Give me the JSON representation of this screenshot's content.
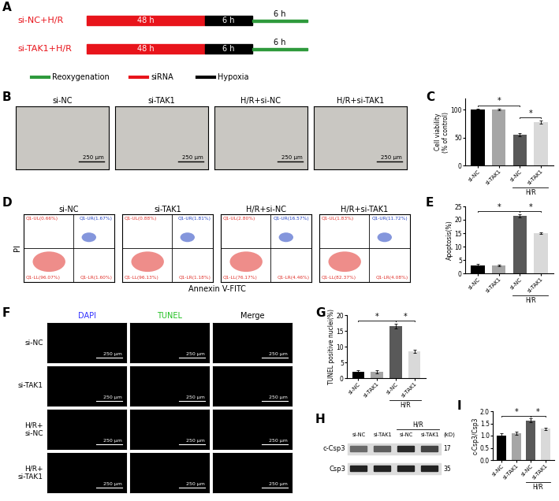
{
  "chart_data": [
    {
      "panel_label": "C",
      "type": "bar",
      "y_label": "Cell viability\n(% of control)",
      "categories": [
        "si-NC",
        "si-TAK1",
        "si-NC",
        "si-TAK1"
      ],
      "groups": [
        {
          "label": "H/R",
          "categories": [
            2,
            3
          ]
        }
      ],
      "values": [
        100,
        100,
        55,
        78
      ],
      "errors": [
        2,
        1.5,
        3,
        2.5
      ],
      "colors": [
        "#000000",
        "#a6a6a6",
        "#595959",
        "#d9d9d9"
      ],
      "ylim": [
        0,
        120
      ],
      "yticks": [
        0,
        50,
        100
      ],
      "significance": [
        {
          "from": 0,
          "to": 2,
          "label": "*"
        },
        {
          "from": 2,
          "to": 3,
          "label": "*"
        }
      ]
    },
    {
      "panel_label": "E",
      "type": "bar",
      "y_label": "Apoptosis(%)",
      "categories": [
        "si-NC",
        "si-TAK1",
        "si-NC",
        "si-TAK1"
      ],
      "groups": [
        {
          "label": "H/R",
          "categories": [
            2,
            3
          ]
        }
      ],
      "values": [
        3,
        3,
        21.5,
        15
      ],
      "errors": [
        0.4,
        0.3,
        0.6,
        0.3
      ],
      "colors": [
        "#000000",
        "#a6a6a6",
        "#595959",
        "#d9d9d9"
      ],
      "ylim": [
        0,
        25
      ],
      "yticks": [
        0,
        5,
        10,
        15,
        20,
        25
      ],
      "significance": [
        {
          "from": 0,
          "to": 2,
          "label": "*"
        },
        {
          "from": 2,
          "to": 3,
          "label": "*"
        }
      ]
    },
    {
      "panel_label": "G",
      "type": "bar",
      "y_label": "TUNEL positive nuclei(%)",
      "categories": [
        "si-NC",
        "si-TAK1",
        "si-NC",
        "si-TAK1"
      ],
      "groups": [
        {
          "label": "H/R",
          "categories": [
            2,
            3
          ]
        }
      ],
      "values": [
        2,
        2,
        16.5,
        8.5
      ],
      "errors": [
        0.6,
        0.5,
        0.8,
        0.6
      ],
      "colors": [
        "#000000",
        "#a6a6a6",
        "#595959",
        "#d9d9d9"
      ],
      "ylim": [
        0,
        20
      ],
      "yticks": [
        0,
        5,
        10,
        15,
        20
      ],
      "significance": [
        {
          "from": 0,
          "to": 2,
          "label": "*"
        },
        {
          "from": 2,
          "to": 3,
          "label": "*"
        }
      ]
    },
    {
      "panel_label": "I",
      "type": "bar",
      "y_label": "c-Csp3/Csp3",
      "categories": [
        "si-NC",
        "si-TAK1",
        "si-NC",
        "si-TAK1"
      ],
      "groups": [
        {
          "label": "H/R",
          "categories": [
            2,
            3
          ]
        }
      ],
      "values": [
        1.0,
        1.1,
        1.62,
        1.28
      ],
      "errors": [
        0.1,
        0.06,
        0.08,
        0.05
      ],
      "colors": [
        "#000000",
        "#a6a6a6",
        "#595959",
        "#d9d9d9"
      ],
      "ylim": [
        0,
        2.0
      ],
      "yticks": [
        {
          "value": 0,
          "label": "0.0"
        },
        {
          "value": 0.5,
          "label": "0.5"
        },
        {
          "value": 1.0,
          "label": "1.0"
        },
        {
          "value": 1.5,
          "label": "1.5"
        },
        {
          "value": 2.0,
          "label": "2.0"
        }
      ],
      "significance": [
        {
          "from": 0,
          "to": 2,
          "label": "*"
        },
        {
          "from": 2,
          "to": 3,
          "label": "*"
        }
      ]
    }
  ],
  "panel_A": {
    "panel_label": "A",
    "rows": [
      {
        "label": "si-NC+H/R",
        "color": "#e8141b",
        "segments": [
          {
            "label": "48 h",
            "phase": "siRNA"
          },
          {
            "label": "6 h",
            "phase": "Hypoxia"
          },
          {
            "label": "6 h",
            "phase": "Reoxygenation"
          }
        ]
      },
      {
        "label": "si-TAK1+H/R",
        "color": "#e8141b",
        "segments": [
          {
            "label": "48 h",
            "phase": "siRNA"
          },
          {
            "label": "6 h",
            "phase": "Hypoxia"
          },
          {
            "label": "6 h",
            "phase": "Reoxygenation"
          }
        ]
      }
    ],
    "legend": [
      {
        "label": "Reoxygenation",
        "color": "#2e9a3c"
      },
      {
        "label": "siRNA",
        "color": "#e8141b"
      },
      {
        "label": "Hypoxia",
        "color": "#000000"
      }
    ]
  },
  "panel_B": {
    "panel_label": "B",
    "images": [
      "si-NC",
      "si-TAK1",
      "H/R+si-NC",
      "H/R+si-TAK1"
    ],
    "scale_bar": "250 μm"
  },
  "panel_D": {
    "panel_label": "D",
    "x_label": "Annexin V-FITC",
    "y_label": "PI",
    "tick_labels": false,
    "plots": [
      {
        "title": "si-NC",
        "quadrants": {
          "UL": "Q1-UL(0.66%)",
          "UR": "Q1-UR(1.67%)",
          "LL": "Q1-LL(96.07%)",
          "LR": "Q1-LR(1.60%)"
        }
      },
      {
        "title": "si-TAK1",
        "quadrants": {
          "UL": "Q1-UL(0.88%)",
          "UR": "Q1-UR(1.81%)",
          "LL": "Q1-LL(96.13%)",
          "LR": "Q1-LR(1.18%)"
        }
      },
      {
        "title": "H/R+si-NC",
        "quadrants": {
          "UL": "Q1-UL(2.80%)",
          "UR": "Q1-UR(16.57%)",
          "LL": "Q1-LL(76.17%)",
          "LR": "Q1-LR(4.46%)"
        }
      },
      {
        "title": "H/R+si-TAK1",
        "quadrants": {
          "UL": "Q1-UL(1.83%)",
          "UR": "Q1-UR(11.72%)",
          "LL": "Q1-LL(82.37%)",
          "LR": "Q1-LR(4.08%)"
        }
      }
    ]
  },
  "panel_F": {
    "panel_label": "F",
    "columns": [
      {
        "label": "DAPI",
        "color": "#3030ff"
      },
      {
        "label": "TUNEL",
        "color": "#20c020"
      },
      {
        "label": "Merge",
        "color": "#000000"
      }
    ],
    "rows": [
      "si-NC",
      "si-TAK1",
      "H/R+\nsi-NC",
      "H/R+\nsi-TAK1"
    ],
    "scale_bar": "250 μm"
  },
  "panel_H": {
    "panel_label": "H",
    "lanes": [
      "si-NC",
      "si-TAK1",
      "si-NC",
      "si-TAK1"
    ],
    "groups": [
      {
        "label": "H/R",
        "lanes": [
          2,
          3
        ]
      }
    ],
    "unit": "(kD)",
    "bands": [
      {
        "label": "c-Csp3",
        "kd": 17
      },
      {
        "label": "Csp3",
        "kd": 35
      }
    ]
  }
}
